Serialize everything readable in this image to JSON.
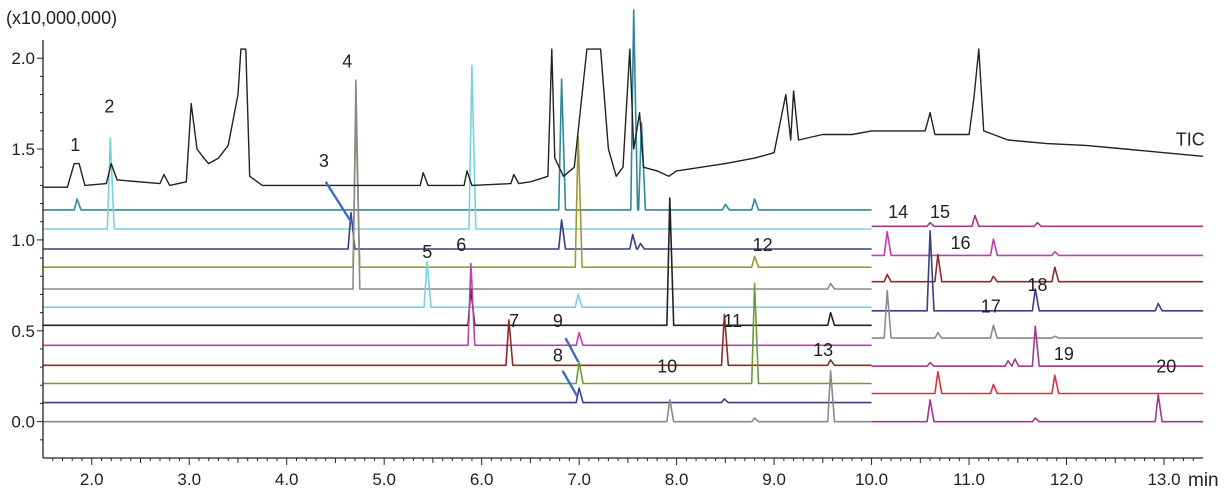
{
  "chart_data": {
    "type": "line",
    "title": "",
    "xlabel": "min",
    "ylabel": "",
    "y_multiplier": "(x10,000,000)",
    "xlim": [
      1.5,
      13.4
    ],
    "ylim": [
      -0.2,
      2.1
    ],
    "x_ticks": [
      "2.0",
      "3.0",
      "4.0",
      "5.0",
      "6.0",
      "7.0",
      "8.0",
      "9.0",
      "10.0",
      "11.0",
      "12.0",
      "13.0"
    ],
    "y_ticks": [
      "0.0",
      "0.5",
      "1.0",
      "1.5",
      "2.0"
    ],
    "tic": {
      "name": "TIC",
      "color": "#222222",
      "baseline": 1.29,
      "points": [
        [
          1.5,
          1.29
        ],
        [
          1.75,
          1.29
        ],
        [
          1.82,
          1.42
        ],
        [
          1.87,
          1.42
        ],
        [
          1.93,
          1.3
        ],
        [
          2.15,
          1.31
        ],
        [
          2.2,
          1.42
        ],
        [
          2.26,
          1.33
        ],
        [
          2.7,
          1.31
        ],
        [
          2.74,
          1.36
        ],
        [
          2.8,
          1.3
        ],
        [
          2.97,
          1.32
        ],
        [
          3.02,
          1.75
        ],
        [
          3.08,
          1.5
        ],
        [
          3.15,
          1.45
        ],
        [
          3.2,
          1.42
        ],
        [
          3.3,
          1.45
        ],
        [
          3.4,
          1.52
        ],
        [
          3.5,
          1.8
        ],
        [
          3.53,
          2.05
        ],
        [
          3.58,
          2.05
        ],
        [
          3.62,
          1.35
        ],
        [
          3.75,
          1.3
        ],
        [
          5.37,
          1.3
        ],
        [
          5.4,
          1.37
        ],
        [
          5.45,
          1.3
        ],
        [
          5.82,
          1.3
        ],
        [
          5.85,
          1.38
        ],
        [
          5.9,
          1.3
        ],
        [
          6.3,
          1.31
        ],
        [
          6.33,
          1.36
        ],
        [
          6.38,
          1.31
        ],
        [
          6.5,
          1.32
        ],
        [
          6.68,
          1.35
        ],
        [
          6.72,
          2.05
        ],
        [
          6.75,
          1.45
        ],
        [
          6.84,
          1.35
        ],
        [
          6.95,
          1.4
        ],
        [
          7.08,
          2.05
        ],
        [
          7.22,
          2.05
        ],
        [
          7.3,
          1.5
        ],
        [
          7.38,
          1.35
        ],
        [
          7.45,
          1.4
        ],
        [
          7.52,
          2.05
        ],
        [
          7.56,
          1.5
        ],
        [
          7.62,
          1.7
        ],
        [
          7.66,
          1.4
        ],
        [
          7.8,
          1.38
        ],
        [
          7.92,
          1.35
        ],
        [
          8.0,
          1.38
        ],
        [
          8.5,
          1.42
        ],
        [
          8.8,
          1.45
        ],
        [
          9.0,
          1.48
        ],
        [
          9.12,
          1.8
        ],
        [
          9.17,
          1.55
        ],
        [
          9.2,
          1.82
        ],
        [
          9.25,
          1.55
        ],
        [
          9.5,
          1.58
        ],
        [
          9.8,
          1.58
        ],
        [
          10.0,
          1.6
        ],
        [
          10.3,
          1.6
        ],
        [
          10.55,
          1.6
        ],
        [
          10.6,
          1.7
        ],
        [
          10.65,
          1.58
        ],
        [
          11.0,
          1.58
        ],
        [
          11.05,
          1.78
        ],
        [
          11.1,
          2.05
        ],
        [
          11.15,
          1.6
        ],
        [
          11.4,
          1.55
        ],
        [
          11.8,
          1.53
        ],
        [
          12.2,
          1.52
        ],
        [
          12.6,
          1.5
        ],
        [
          13.0,
          1.48
        ],
        [
          13.4,
          1.46
        ]
      ]
    },
    "series": [
      {
        "color": "#2e8a96",
        "baseline": 1.165,
        "peaks": [
          [
            1.85,
            0.06
          ],
          [
            6.82,
            0.72
          ],
          [
            7.56,
            1.1
          ],
          [
            7.64,
            0.48
          ],
          [
            8.5,
            0.03
          ],
          [
            8.8,
            0.06
          ]
        ]
      },
      {
        "color": "#76d2e0",
        "baseline": 1.06,
        "peaks": [
          [
            2.19,
            0.5
          ],
          [
            5.9,
            0.9
          ]
        ]
      },
      {
        "color": "#3a3f84",
        "baseline": 0.95,
        "peaks": [
          [
            4.66,
            0.2
          ],
          [
            6.82,
            0.16
          ],
          [
            7.55,
            0.08
          ],
          [
            7.63,
            0.03
          ]
        ]
      },
      {
        "color": "#9c9b32",
        "baseline": 0.85,
        "peaks": [
          [
            4.71,
            0.85
          ],
          [
            6.99,
            0.72
          ],
          [
            8.8,
            0.06
          ]
        ]
      },
      {
        "color": "#8a8a8a",
        "baseline": 0.73,
        "peaks": [
          [
            4.71,
            1.15
          ],
          [
            9.58,
            0.03
          ]
        ]
      },
      {
        "color": "#76d2e0",
        "baseline": 0.63,
        "peaks": [
          [
            5.44,
            0.25
          ],
          [
            6.99,
            0.07
          ]
        ]
      },
      {
        "color": "#222222",
        "baseline": 0.53,
        "peaks": [
          [
            5.89,
            0.2
          ],
          [
            7.93,
            0.7
          ],
          [
            9.58,
            0.07
          ]
        ]
      },
      {
        "color": "#c03fa8",
        "baseline": 0.42,
        "peaks": [
          [
            5.89,
            0.45
          ],
          [
            7.0,
            0.07
          ]
        ]
      },
      {
        "color": "#8a2c25",
        "baseline": 0.31,
        "peaks": [
          [
            6.28,
            0.25
          ],
          [
            8.49,
            0.28
          ],
          [
            9.58,
            0.03
          ]
        ]
      },
      {
        "color": "#6a9a3a",
        "baseline": 0.21,
        "peaks": [
          [
            7.0,
            0.12
          ],
          [
            8.8,
            0.55
          ]
        ]
      },
      {
        "color": "#3a3f84",
        "baseline": 0.105,
        "peaks": [
          [
            7.0,
            0.08
          ],
          [
            8.49,
            0.02
          ]
        ]
      },
      {
        "color": "#8a8a8a",
        "baseline": 0.0,
        "peaks": [
          [
            7.93,
            0.12
          ],
          [
            8.8,
            0.02
          ],
          [
            9.58,
            0.28
          ]
        ]
      },
      {
        "color": "#a23a8c",
        "baseline": 1.075,
        "x_start": 10.0,
        "peaks": [
          [
            10.6,
            0.02
          ],
          [
            11.06,
            0.06
          ],
          [
            11.7,
            0.02
          ]
        ]
      },
      {
        "color": "#c03fa8",
        "baseline": 0.915,
        "x_start": 10.0,
        "peaks": [
          [
            10.16,
            0.13
          ],
          [
            11.25,
            0.09
          ],
          [
            11.88,
            0.02
          ]
        ]
      },
      {
        "color": "#8a2c25",
        "baseline": 0.77,
        "x_start": 10.0,
        "peaks": [
          [
            10.16,
            0.04
          ],
          [
            10.68,
            0.15
          ],
          [
            11.25,
            0.03
          ],
          [
            11.88,
            0.08
          ]
        ]
      },
      {
        "color": "#3a3f84",
        "baseline": 0.61,
        "x_start": 10.0,
        "peaks": [
          [
            10.6,
            0.44
          ],
          [
            11.68,
            0.12
          ],
          [
            12.94,
            0.04
          ]
        ]
      },
      {
        "color": "#8a8a8a",
        "baseline": 0.46,
        "x_start": 10.0,
        "peaks": [
          [
            10.16,
            0.26
          ],
          [
            10.68,
            0.03
          ],
          [
            11.25,
            0.07
          ],
          [
            11.88,
            0.01
          ]
        ]
      },
      {
        "color": "#a23a8c",
        "baseline": 0.305,
        "x_start": 10.0,
        "peaks": [
          [
            10.6,
            0.02
          ],
          [
            11.4,
            0.03
          ],
          [
            11.47,
            0.04
          ],
          [
            11.68,
            0.22
          ]
        ]
      },
      {
        "color": "#e03040",
        "baseline": 0.155,
        "x_start": 10.0,
        "peaks": [
          [
            10.68,
            0.12
          ],
          [
            11.25,
            0.05
          ],
          [
            11.88,
            0.1
          ]
        ]
      },
      {
        "color": "#a23a8c",
        "baseline": 0.0,
        "x_start": 10.0,
        "peaks": [
          [
            10.6,
            0.12
          ],
          [
            11.68,
            0.02
          ],
          [
            12.94,
            0.15
          ]
        ]
      }
    ],
    "annotations": [
      {
        "text": "1",
        "x": 1.78,
        "y": 1.49
      },
      {
        "text": "2",
        "x": 2.13,
        "y": 1.7
      },
      {
        "text": "3",
        "x": 4.33,
        "y": 1.4
      },
      {
        "text": "4",
        "x": 4.57,
        "y": 1.95
      },
      {
        "text": "5",
        "x": 5.39,
        "y": 0.9
      },
      {
        "text": "6",
        "x": 5.74,
        "y": 0.94
      },
      {
        "text": "7",
        "x": 6.28,
        "y": 0.52
      },
      {
        "text": "8",
        "x": 6.73,
        "y": 0.33
      },
      {
        "text": "9",
        "x": 6.73,
        "y": 0.52
      },
      {
        "text": "10",
        "x": 7.8,
        "y": 0.27
      },
      {
        "text": "11",
        "x": 8.48,
        "y": 0.52
      },
      {
        "text": "12",
        "x": 8.78,
        "y": 0.94
      },
      {
        "text": "13",
        "x": 9.4,
        "y": 0.36
      },
      {
        "text": "14",
        "x": 10.17,
        "y": 1.12
      },
      {
        "text": "15",
        "x": 10.6,
        "y": 1.12
      },
      {
        "text": "16",
        "x": 10.81,
        "y": 0.95
      },
      {
        "text": "17",
        "x": 11.12,
        "y": 0.6
      },
      {
        "text": "18",
        "x": 11.6,
        "y": 0.72
      },
      {
        "text": "19",
        "x": 11.87,
        "y": 0.34
      },
      {
        "text": "20",
        "x": 12.92,
        "y": 0.27
      },
      {
        "text": "TIC",
        "x": 13.12,
        "y": 1.52
      }
    ],
    "leader_lines": [
      {
        "label": "3",
        "from": [
          4.4,
          1.32
        ],
        "to": [
          4.66,
          1.1
        ]
      },
      {
        "label": "8",
        "from": [
          6.83,
          0.28
        ],
        "to": [
          6.98,
          0.14
        ]
      },
      {
        "label": "9",
        "from": [
          6.86,
          0.46
        ],
        "to": [
          6.99,
          0.33
        ]
      }
    ],
    "grid": false,
    "legend": "none"
  }
}
